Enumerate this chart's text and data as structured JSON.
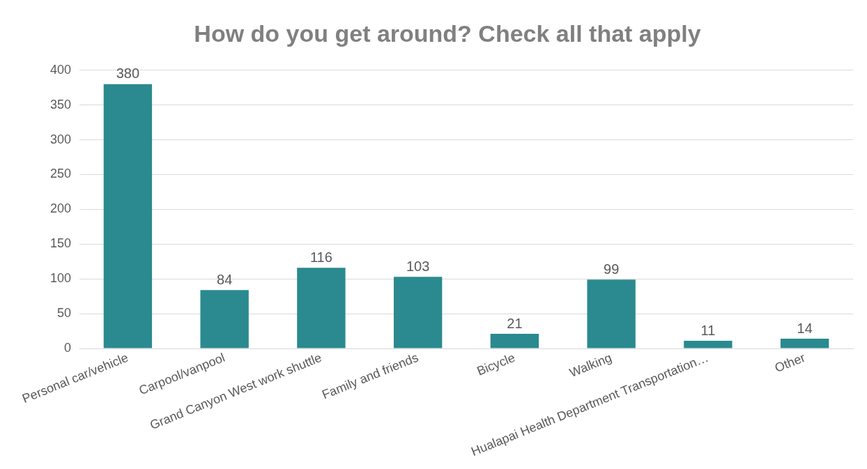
{
  "chart_data": {
    "type": "bar",
    "title": "How do you get around? Check all that apply",
    "categories": [
      "Personal car/vehicle",
      "Carpool/vanpool",
      "Grand Canyon West work shuttle",
      "Family and friends",
      "Bicycle",
      "Walking",
      "Hualapai Health Department Transportation…",
      "Other"
    ],
    "values": [
      380,
      84,
      116,
      103,
      21,
      99,
      11,
      14
    ],
    "color": "#2a8a8f",
    "ylim": [
      0,
      400
    ],
    "yticks": [
      0,
      50,
      100,
      150,
      200,
      250,
      300,
      350,
      400
    ],
    "grid": "y",
    "legend": false,
    "data_labels": true
  }
}
